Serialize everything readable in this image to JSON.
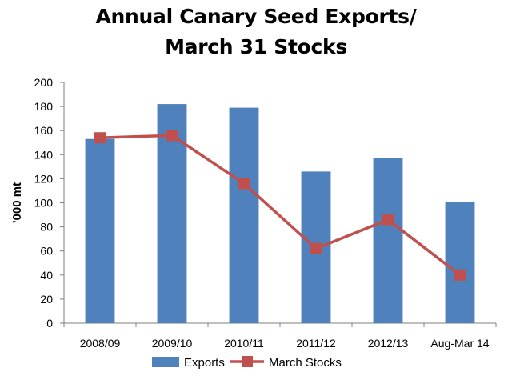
{
  "chart_data": {
    "type": "bar",
    "title_lines": [
      "Annual Canary Seed Exports/",
      "March 31  Stocks"
    ],
    "xlabel": "",
    "ylabel": "'000 mt",
    "categories": [
      "2008/09",
      "2009/10",
      "2010/11",
      "2011/12",
      "2012/13",
      "Aug-Mar 14"
    ],
    "ylim": [
      0,
      200
    ],
    "yticks": [
      0,
      20,
      40,
      60,
      80,
      100,
      120,
      140,
      160,
      180,
      200
    ],
    "grid": false,
    "legend_position": "bottom",
    "series": [
      {
        "name": "Exports",
        "type": "bar",
        "color": "#4F81BD",
        "values": [
          153,
          182,
          179,
          126,
          137,
          101
        ]
      },
      {
        "name": "March Stocks",
        "type": "line",
        "marker": "square",
        "color": "#C0504D",
        "values": [
          154,
          156,
          116,
          62,
          86,
          40
        ]
      }
    ]
  }
}
